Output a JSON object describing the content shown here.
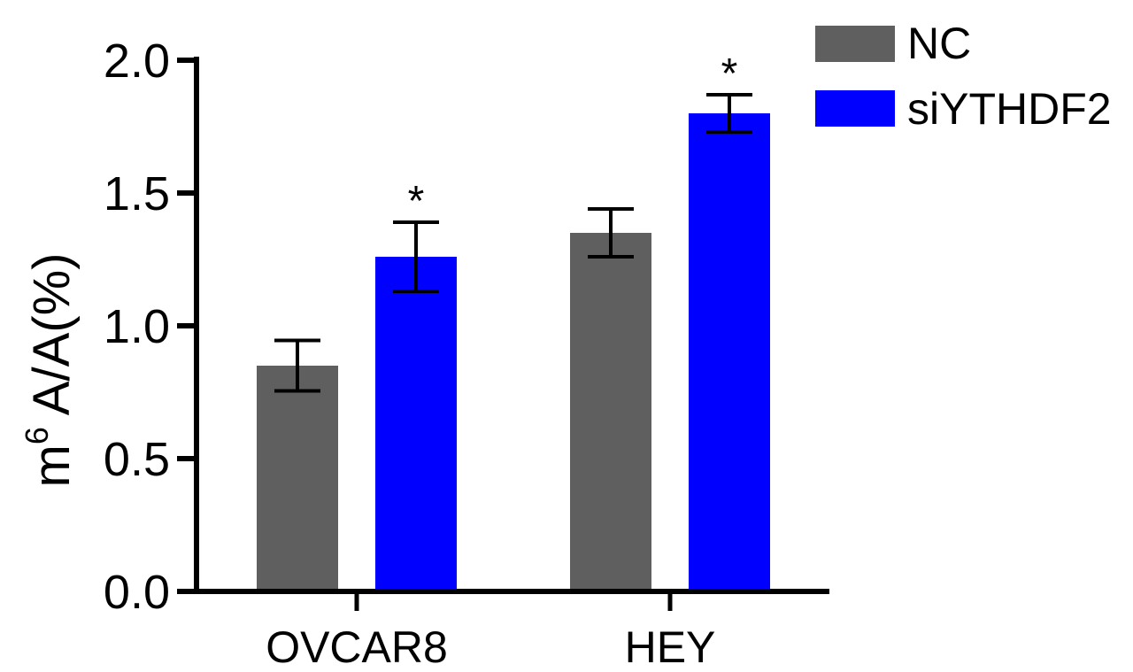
{
  "chart_data": {
    "type": "bar",
    "categories": [
      "OVCAR8",
      "HEY"
    ],
    "series": [
      {
        "name": "NC",
        "color": "#5f5f5f",
        "values": [
          0.85,
          1.35
        ],
        "errors": [
          0.095,
          0.09
        ]
      },
      {
        "name": "siYTHDF2",
        "color": "#0000ff",
        "values": [
          1.26,
          1.8
        ],
        "errors": [
          0.13,
          0.07
        ]
      }
    ],
    "significance": [
      [
        "",
        "*"
      ],
      [
        "",
        "*"
      ]
    ],
    "ylabel_main": "m",
    "ylabel_sup": "6",
    "ylabel_rest": " A/A(%)",
    "yticks": [
      "0.0",
      "0.5",
      "1.0",
      "1.5",
      "2.0"
    ],
    "ylim": [
      0,
      2.0
    ],
    "legend_position": "top-right",
    "grid": false
  }
}
